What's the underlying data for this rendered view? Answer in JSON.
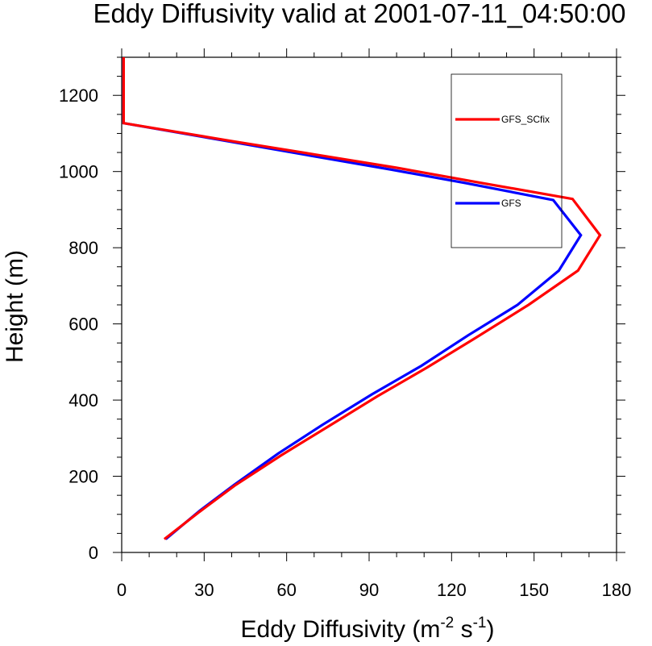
{
  "chart_data": {
    "type": "line",
    "title": "Eddy Diffusivity valid at 2001-07-11_04:50:00",
    "xlabel": {
      "base": "Eddy Diffusivity (m",
      "exp1": "-2",
      "mid": " s",
      "exp2": "-1",
      "end": ")"
    },
    "ylabel": "Height (m)",
    "xlim": [
      0,
      180
    ],
    "ylim": [
      0,
      1300
    ],
    "xticks": [
      0,
      30,
      60,
      90,
      120,
      150,
      180
    ],
    "yticks": [
      0,
      200,
      400,
      600,
      800,
      1000,
      1200
    ],
    "legend": {
      "placement": "top-right, inside plot"
    },
    "series": [
      {
        "name": "GFS_SCfix",
        "color": "#ff0000",
        "points": [
          [
            15.5,
            35
          ],
          [
            28,
            105
          ],
          [
            41,
            175
          ],
          [
            58,
            255
          ],
          [
            75,
            330
          ],
          [
            93,
            410
          ],
          [
            111,
            485
          ],
          [
            128,
            560
          ],
          [
            148,
            650
          ],
          [
            166,
            740
          ],
          [
            174,
            833
          ],
          [
            164,
            928
          ],
          [
            131,
            970
          ],
          [
            100,
            1010
          ],
          [
            70,
            1045
          ],
          [
            40,
            1080
          ],
          [
            0.7,
            1127
          ],
          [
            0.7,
            1200
          ],
          [
            0.7,
            1300
          ]
        ]
      },
      {
        "name": "GFS",
        "color": "#0000ff",
        "points": [
          [
            16,
            35
          ],
          [
            28.5,
            110
          ],
          [
            41,
            178
          ],
          [
            57,
            260
          ],
          [
            73,
            335
          ],
          [
            91,
            415
          ],
          [
            109,
            490
          ],
          [
            126,
            570
          ],
          [
            144,
            650
          ],
          [
            159,
            740
          ],
          [
            167,
            833
          ],
          [
            157,
            925
          ],
          [
            125,
            970
          ],
          [
            98,
            1005
          ],
          [
            70,
            1040
          ],
          [
            40,
            1078
          ],
          [
            0.7,
            1127
          ],
          [
            0.7,
            1200
          ],
          [
            0.7,
            1300
          ]
        ]
      }
    ]
  }
}
